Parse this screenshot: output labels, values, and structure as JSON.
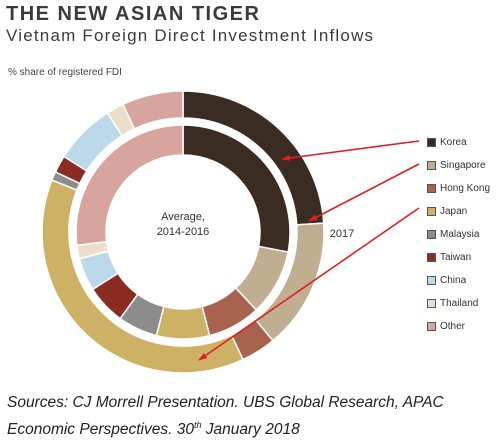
{
  "title": "THE NEW ASIAN TIGER",
  "subtitle": "Vietnam Foreign Direct Investment Inflows",
  "unit_label": "% share of registered  FDI",
  "source": {
    "line1": "Sources: CJ Morrell Presentation. UBS Global Research, APAC",
    "line2_pre": "Economic Perspectives. 30",
    "line2_sup": "th",
    "line2_post": " January 2018"
  },
  "chart_data": {
    "type": "pie",
    "variant": "nested donut",
    "categories": [
      "Korea",
      "Singapore",
      "Hong Kong",
      "Japan",
      "Malaysia",
      "Taiwan",
      "China",
      "Thailand",
      "Other"
    ],
    "colors": [
      "#3a2c22",
      "#bfae90",
      "#a8634f",
      "#cdb165",
      "#8c8c8c",
      "#8a2c22",
      "#bcd9ea",
      "#ebdfca",
      "#d8a59e"
    ],
    "series": [
      {
        "name": "Average, 2014-2016",
        "ring": "inner",
        "values": [
          28,
          10,
          8,
          8,
          6,
          6,
          5,
          2,
          27
        ]
      },
      {
        "name": "2017",
        "ring": "outer",
        "values": [
          24,
          15,
          4,
          38,
          1,
          2,
          7,
          2,
          7
        ]
      }
    ]
  }
}
